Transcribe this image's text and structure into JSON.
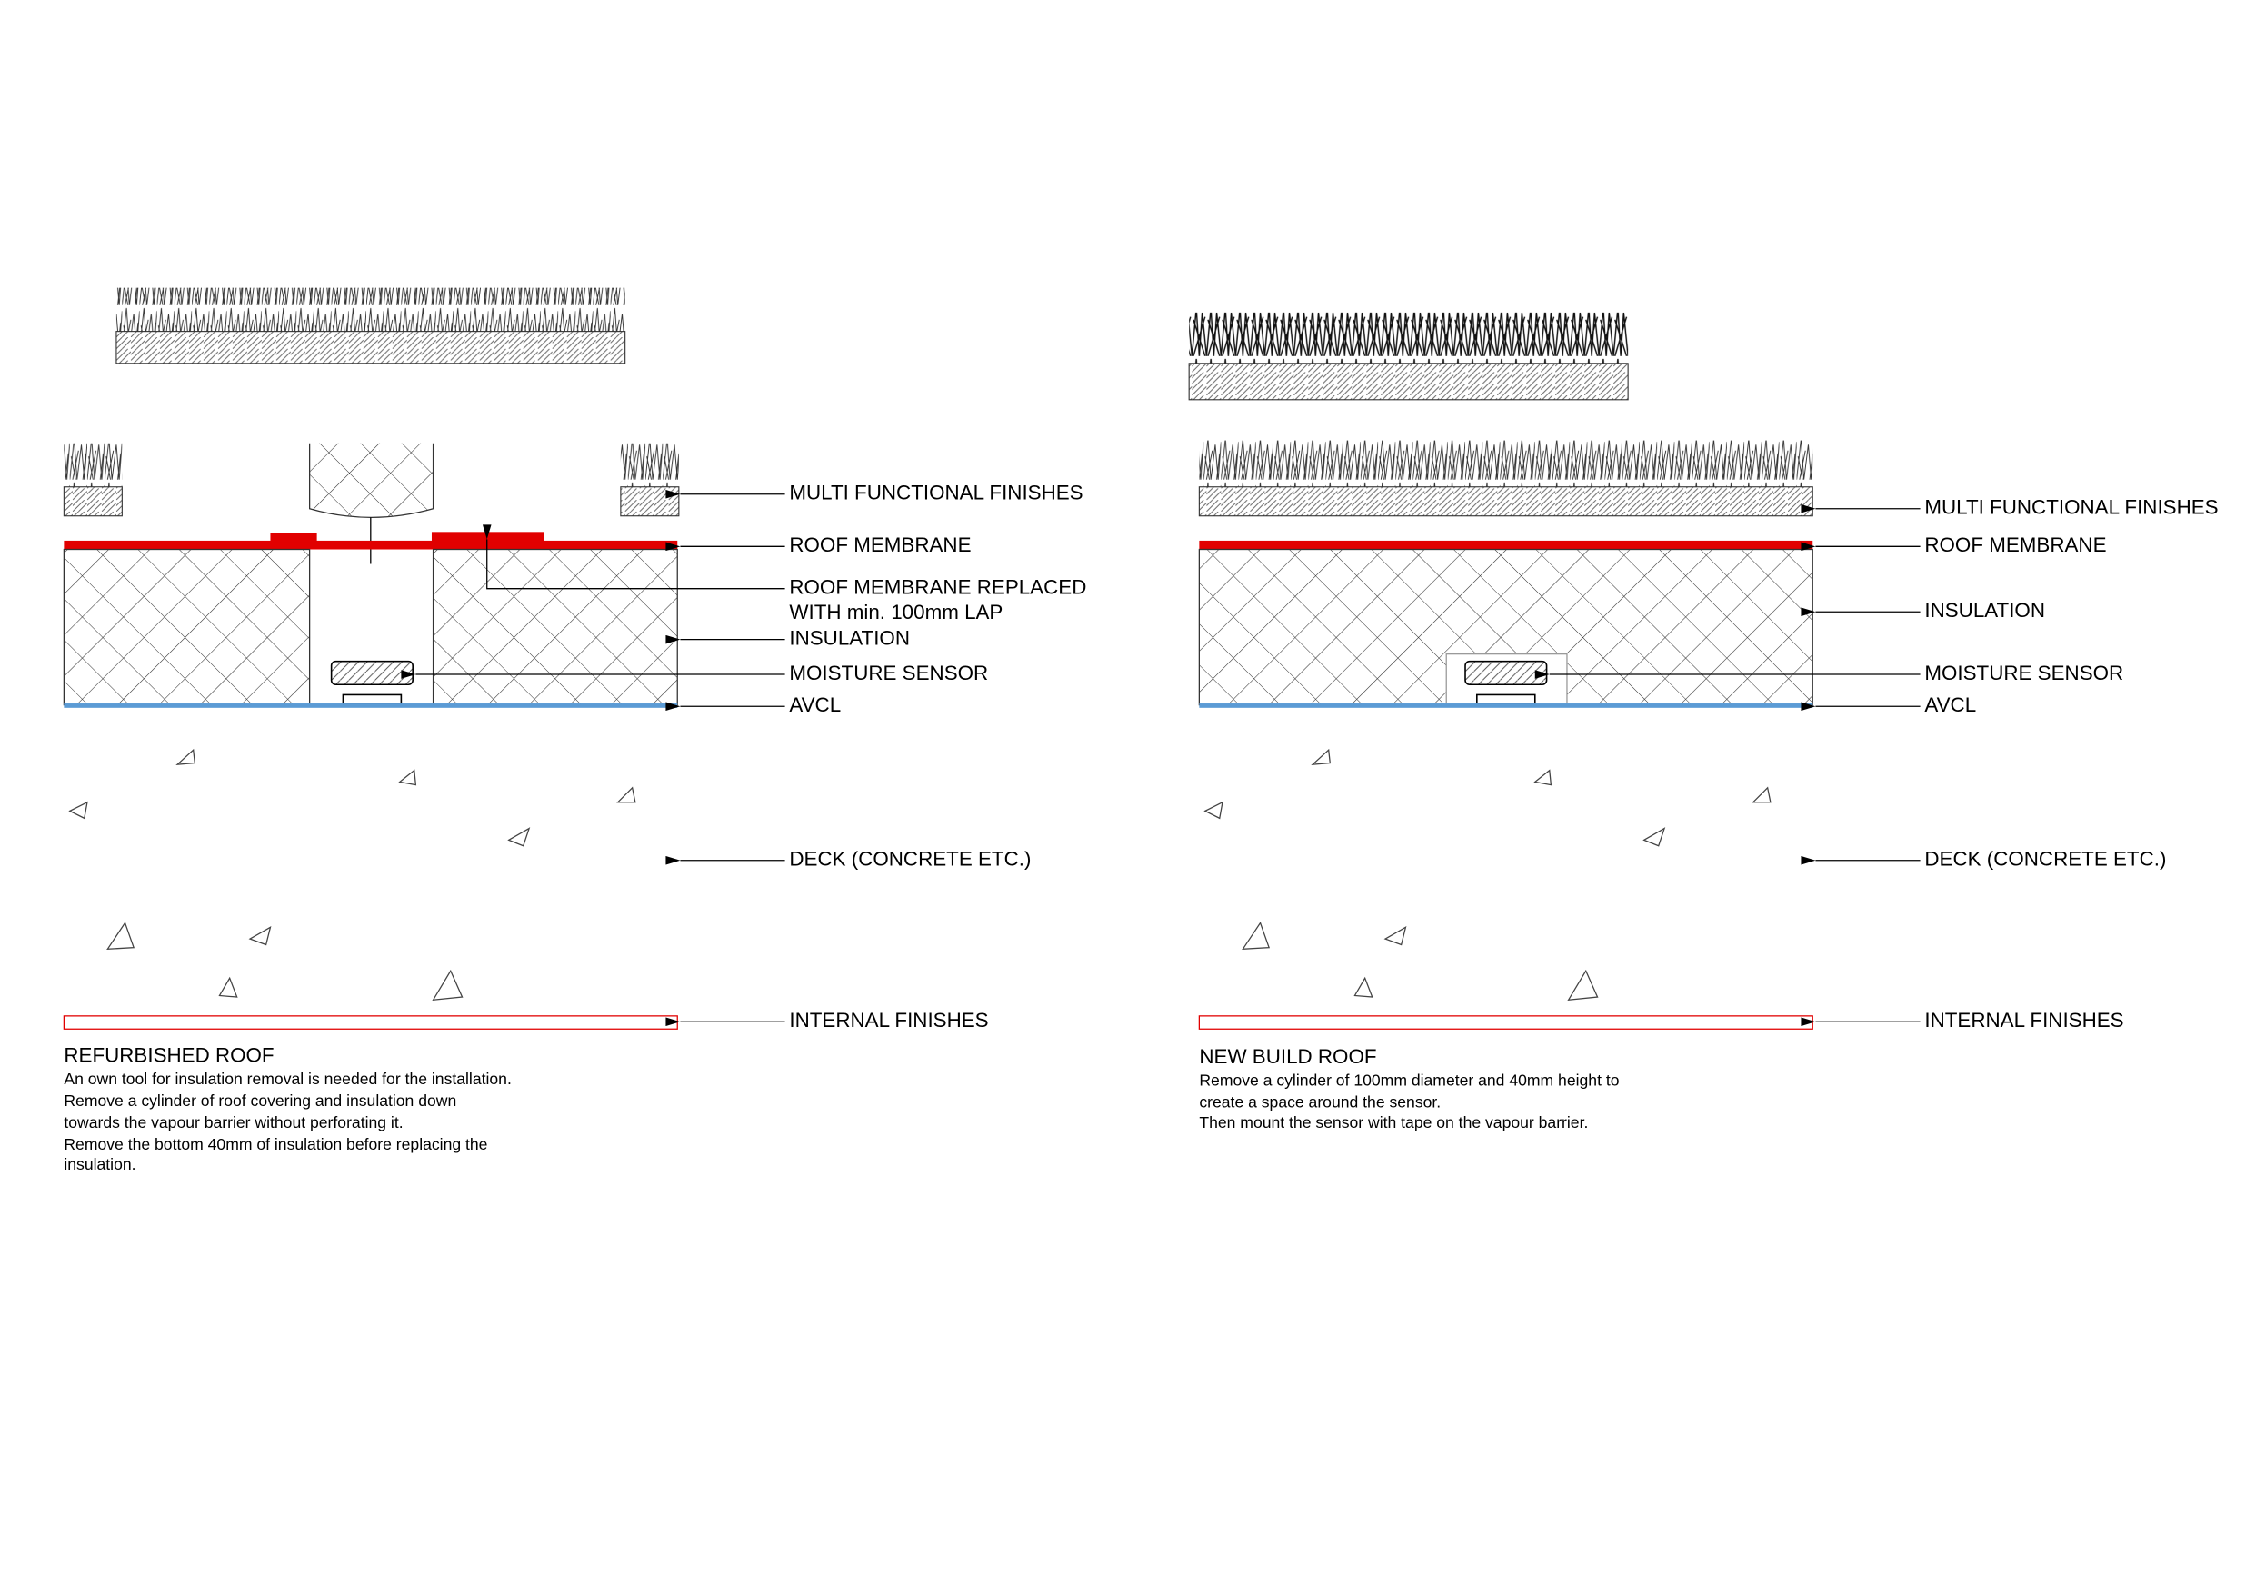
{
  "left": {
    "labels": [
      "MULTI FUNCTIONAL FINISHES",
      "ROOF MEMBRANE",
      "ROOF MEMBRANE REPLACED",
      "WITH min. 100mm LAP",
      "INSULATION",
      "MOISTURE SENSOR",
      "AVCL",
      "DECK (CONCRETE ETC.)",
      "INTERNAL FINISHES"
    ],
    "title": "REFURBISHED ROOF",
    "notes": [
      "An own tool for insulation removal is needed for the installation.",
      "Remove a cylinder of roof covering and insulation down",
      "towards the vapour barrier without perforating it.",
      "Remove the bottom 40mm of insulation before replacing the",
      "insulation."
    ]
  },
  "right": {
    "labels": [
      "MULTI FUNCTIONAL FINISHES",
      "ROOF MEMBRANE",
      "INSULATION",
      "MOISTURE SENSOR",
      "AVCL",
      "DECK (CONCRETE ETC.)",
      "INTERNAL FINISHES"
    ],
    "title": "NEW BUILD ROOF",
    "notes": [
      "Remove a cylinder of 100mm diameter and 40mm height to",
      "create a space around the sensor.",
      "Then mount the sensor with tape on the vapour barrier."
    ]
  }
}
